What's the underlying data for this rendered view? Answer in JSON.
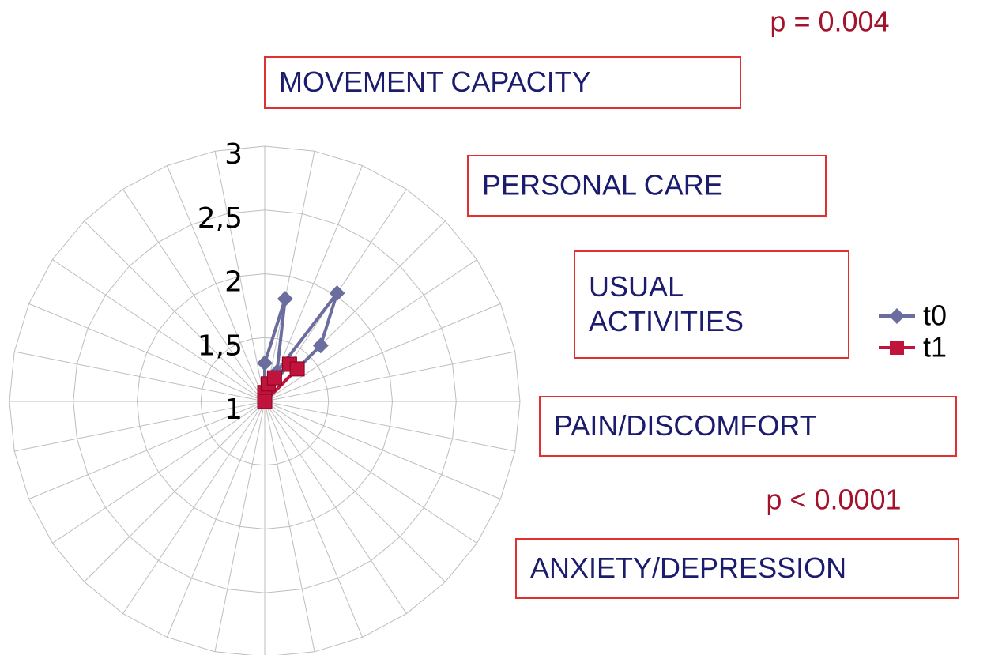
{
  "chart_data": {
    "type": "radar",
    "categories": [
      null,
      null,
      null,
      null,
      null,
      null,
      null,
      null,
      null,
      null,
      null,
      null,
      null,
      null,
      null,
      null,
      null,
      null,
      null,
      null,
      null,
      null,
      null,
      null,
      null,
      null,
      null,
      null,
      null,
      null,
      null,
      null
    ],
    "series": [
      {
        "name": "t0",
        "color": "#6b6d9f",
        "marker": "diamond",
        "values": [
          1.3,
          1.82,
          1.25,
          2.02,
          1.62,
          1,
          1,
          1,
          1,
          1,
          1,
          1,
          1,
          1,
          1,
          1,
          1,
          1,
          1,
          1,
          1,
          1,
          1,
          1,
          1,
          1,
          1,
          1,
          1,
          1,
          1,
          1
        ]
      },
      {
        "name": "t1",
        "color": "#c0143c",
        "marker": "square",
        "values": [
          1.07,
          1.14,
          1.2,
          1.35,
          1.36,
          1,
          1,
          1,
          1,
          1,
          1,
          1,
          1,
          1,
          1,
          1,
          1,
          1,
          1,
          1,
          1,
          1,
          1,
          1,
          1,
          1,
          1,
          1,
          1,
          1,
          1,
          1
        ]
      }
    ],
    "ylim": [
      1,
      3
    ],
    "yticks": [
      {
        "value": 1,
        "label": "1"
      },
      {
        "value": 1.5,
        "label": "1,5"
      },
      {
        "value": 2,
        "label": "2"
      },
      {
        "value": 2.5,
        "label": "2,5"
      },
      {
        "value": 3,
        "label": "3"
      }
    ],
    "grid": true,
    "legend": "right",
    "annotations": [
      {
        "lines": [
          "MOVEMENT CAPACITY"
        ]
      },
      {
        "lines": [
          "PERSONAL CARE"
        ]
      },
      {
        "lines": [
          "USUAL",
          "ACTIVITIES"
        ]
      },
      {
        "lines": [
          "PAIN/DISCOMFORT"
        ]
      },
      {
        "lines": [
          "ANXIETY/DEPRESSION"
        ]
      }
    ],
    "p_values": [
      "p = 0.004",
      "p < 0.0001"
    ]
  }
}
